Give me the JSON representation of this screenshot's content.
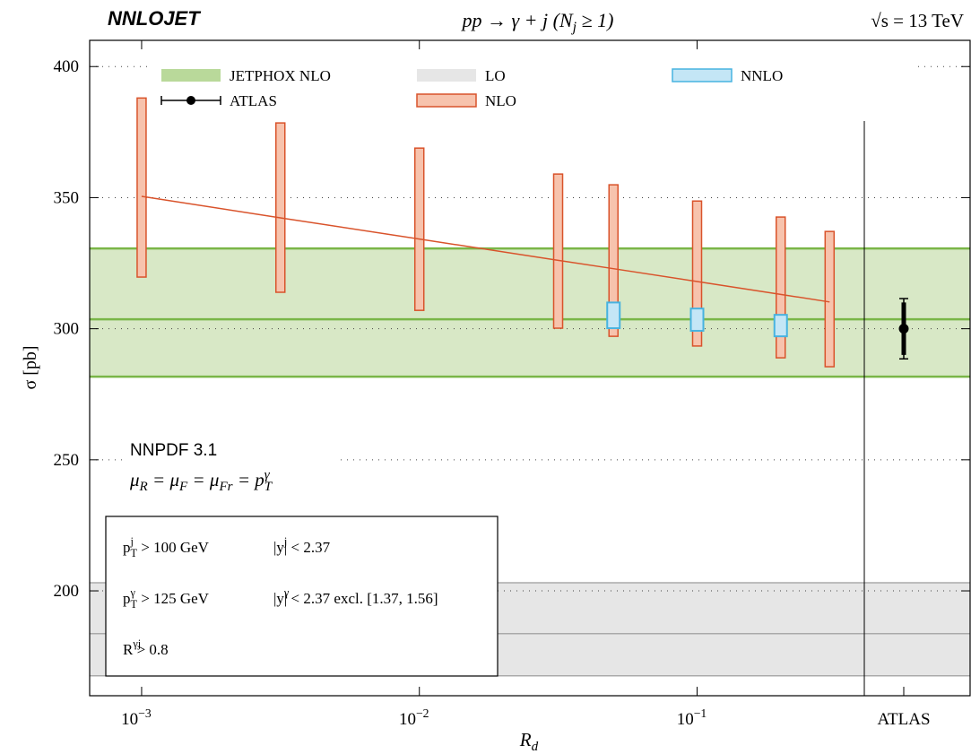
{
  "chart_data": {
    "type": "errorbar",
    "brand": "NNLOJET",
    "title": [
      "pp → γ + j   (N",
      {
        "sub": "j"
      },
      " ≥ 1)"
    ],
    "energy": "√s = 13 TeV",
    "xlabel": [
      "R",
      {
        "sub": "d"
      }
    ],
    "ylabel": "σ [pb]",
    "xscale": "log",
    "xlim": [
      0.00065,
      0.4
    ],
    "xticks": [
      {
        "value": 0.001,
        "label": [
          "10",
          {
            "sup": "−3"
          }
        ]
      },
      {
        "value": 0.01,
        "label": [
          "10",
          {
            "sup": "−2"
          }
        ]
      },
      {
        "value": 0.1,
        "label": [
          "10",
          {
            "sup": "−1"
          }
        ]
      }
    ],
    "extra_category": "ATLAS",
    "ylim": [
      160,
      410
    ],
    "yticks": [
      200,
      250,
      300,
      350,
      400
    ],
    "grid": true,
    "pdf": "NNPDF 3.1",
    "scales": [
      "μ",
      {
        "sub": "R"
      },
      " = μ",
      {
        "sub": "F"
      },
      " = μ",
      {
        "sub": "Fr"
      },
      " = p",
      {
        "sup": "γ"
      },
      {
        "sub": "T"
      }
    ],
    "cuts": [
      [
        [
          "p",
          {
            "sup": "j"
          },
          {
            "sub": "T"
          },
          " > 100 GeV"
        ],
        [
          "|y",
          {
            "sup": "j"
          },
          "| < 2.37"
        ]
      ],
      [
        [
          "p",
          {
            "sup": "γ"
          },
          {
            "sub": "T"
          },
          " > 125 GeV"
        ],
        [
          "|y",
          {
            "sup": "γ"
          },
          "| < 2.37 excl. [1.37, 1.56]"
        ]
      ],
      [
        [
          "R",
          {
            "sup": "γj"
          },
          " > 0.8"
        ]
      ]
    ],
    "series": [
      {
        "name": "JETPHOX NLO",
        "kind": "band",
        "color": "#7ab648",
        "fill": "#d8e8c6",
        "values": [
          303.6
        ],
        "lower": [
          281.7
        ],
        "upper": [
          330.6
        ]
      },
      {
        "name": "LO",
        "kind": "band",
        "color": "#aaaaaa",
        "fill": "#e6e6e6",
        "values": [
          183.7
        ],
        "lower": [
          167.6
        ],
        "upper": [
          203.1
        ]
      },
      {
        "name": "NLO",
        "kind": "range",
        "color": "#d9532b",
        "fill": "#f7c3ad",
        "x": [
          0.001,
          0.00316,
          0.01,
          0.0316,
          0.05,
          0.1,
          0.2,
          0.3
        ],
        "values": [
          350.5,
          342.3,
          334.2,
          326.1,
          322.9,
          318.0,
          313.1,
          310.2
        ],
        "lower": [
          319.7,
          313.9,
          307.0,
          300.2,
          297.1,
          293.4,
          288.9,
          285.5
        ],
        "upper": [
          388.0,
          378.5,
          368.9,
          359.0,
          354.9,
          348.7,
          342.6,
          337.1
        ]
      },
      {
        "name": "NNLO",
        "kind": "box",
        "color": "#47b3e0",
        "fill": "#c4e6f6",
        "x": [
          0.05,
          0.1,
          0.2
        ],
        "lower": [
          300.2,
          299.2,
          297.1
        ],
        "upper": [
          310.0,
          307.7,
          305.3
        ]
      },
      {
        "name": "ATLAS",
        "kind": "point",
        "color": "#000000",
        "values": [
          300
        ],
        "error": [
          11.5
        ],
        "stat_error": [
          10
        ]
      }
    ]
  }
}
